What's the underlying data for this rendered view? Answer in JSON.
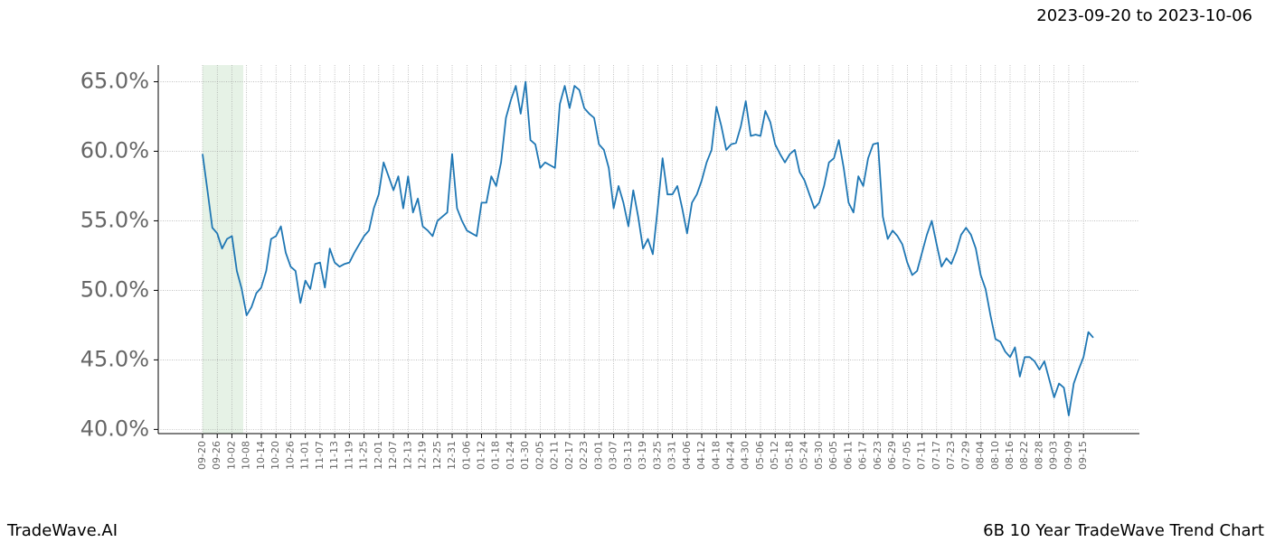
{
  "chart_data": {
    "type": "line",
    "title": "6B 10 Year TradeWave Trend Chart",
    "date_range": "2023-09-20 to 2023-10-06",
    "brand": "TradeWave.AI",
    "categories": [
      "09-20",
      null,
      null,
      "09-26",
      null,
      null,
      "10-02",
      null,
      null,
      "10-08",
      null,
      null,
      "10-14",
      null,
      null,
      "10-20",
      null,
      null,
      "10-26",
      null,
      null,
      "11-01",
      null,
      null,
      "11-07",
      null,
      null,
      "11-13",
      null,
      null,
      "11-19",
      null,
      null,
      "11-25",
      null,
      null,
      "12-01",
      null,
      null,
      "12-07",
      null,
      null,
      "12-13",
      null,
      null,
      "12-19",
      null,
      null,
      "12-25",
      null,
      null,
      "12-31",
      null,
      null,
      "01-06",
      null,
      null,
      "01-12",
      null,
      null,
      "01-18",
      null,
      null,
      "01-24",
      null,
      null,
      "01-30",
      null,
      null,
      "02-05",
      null,
      null,
      "02-11",
      null,
      null,
      "02-17",
      null,
      null,
      "02-23",
      null,
      null,
      "03-01",
      null,
      null,
      "03-07",
      null,
      null,
      "03-13",
      null,
      null,
      "03-19",
      null,
      null,
      "03-25",
      null,
      null,
      "03-31",
      null,
      null,
      "04-06",
      null,
      null,
      "04-12",
      null,
      null,
      "04-18",
      null,
      null,
      "04-24",
      null,
      null,
      "04-30",
      null,
      null,
      "05-06",
      null,
      null,
      "05-12",
      null,
      null,
      "05-18",
      null,
      null,
      "05-24",
      null,
      null,
      "05-30",
      null,
      null,
      "06-05",
      null,
      null,
      "06-11",
      null,
      null,
      "06-17",
      null,
      null,
      "06-23",
      null,
      null,
      "06-29",
      null,
      null,
      "07-05",
      null,
      null,
      "07-11",
      null,
      null,
      "07-17",
      null,
      null,
      "07-23",
      null,
      null,
      "07-29",
      null,
      null,
      "08-04",
      null,
      null,
      "08-10",
      null,
      null,
      "08-16",
      null,
      null,
      "08-22",
      null,
      null,
      "08-28",
      null,
      null,
      "09-03",
      null,
      null,
      "09-09",
      null,
      null,
      "09-15",
      null,
      null
    ],
    "series": [
      {
        "color": "#1f77b4",
        "values": [
          59.8,
          57.2,
          54.5,
          54.1,
          53.0,
          53.7,
          53.9,
          51.4,
          50.1,
          48.2,
          48.8,
          49.8,
          50.2,
          51.4,
          53.7,
          53.9,
          54.6,
          52.7,
          51.7,
          51.4,
          49.1,
          50.7,
          50.1,
          51.9,
          52.0,
          50.2,
          53.0,
          52.0,
          51.7,
          51.9,
          52.0,
          52.7,
          53.3,
          53.9,
          54.3,
          55.9,
          56.9,
          59.2,
          58.2,
          57.2,
          58.2,
          55.9,
          58.2,
          55.6,
          56.6,
          54.6,
          54.3,
          53.9,
          55.0,
          55.3,
          55.6,
          59.8,
          55.9,
          55.0,
          54.3,
          54.1,
          53.9,
          56.3,
          56.3,
          58.2,
          57.5,
          59.2,
          62.4,
          63.7,
          64.7,
          62.7,
          65.0,
          60.8,
          60.5,
          58.8,
          59.2,
          59.0,
          58.8,
          63.4,
          64.7,
          63.1,
          64.7,
          64.4,
          63.1,
          62.7,
          62.4,
          60.5,
          60.1,
          58.8,
          55.9,
          57.5,
          56.3,
          54.6,
          57.2,
          55.3,
          53.0,
          53.7,
          52.6,
          55.9,
          59.5,
          56.9,
          56.9,
          57.5,
          55.9,
          54.1,
          56.3,
          56.9,
          57.9,
          59.2,
          60.1,
          63.2,
          61.8,
          60.1,
          60.5,
          60.6,
          61.8,
          63.6,
          61.1,
          61.2,
          61.1,
          62.9,
          62.1,
          60.5,
          59.8,
          59.2,
          59.8,
          60.1,
          58.5,
          57.9,
          56.9,
          55.9,
          56.3,
          57.5,
          59.2,
          59.5,
          60.8,
          58.8,
          56.3,
          55.6,
          58.2,
          57.5,
          59.5,
          60.5,
          60.6,
          55.3,
          53.7,
          54.3,
          53.9,
          53.3,
          52.0,
          51.1,
          51.4,
          52.7,
          54.0,
          55.0,
          53.3,
          51.7,
          52.3,
          51.9,
          52.8,
          54.0,
          54.5,
          54.0,
          53.0,
          51.1,
          50.1,
          48.2,
          46.5,
          46.3,
          45.6,
          45.2,
          45.9,
          43.8,
          45.2,
          45.2,
          44.9,
          44.3,
          44.9,
          43.6,
          42.3,
          43.3,
          43.0,
          41.0,
          43.3,
          44.3,
          45.2,
          47.0,
          46.6
        ]
      }
    ],
    "ylim": [
      39.7,
      66.2
    ],
    "yticks": [
      {
        "value": 40,
        "label": "40.0%"
      },
      {
        "value": 45,
        "label": "45.0%"
      },
      {
        "value": 50,
        "label": "50.0%"
      },
      {
        "value": 55,
        "label": "55.0%"
      },
      {
        "value": 60,
        "label": "60.0%"
      },
      {
        "value": 65,
        "label": "65.0%"
      }
    ],
    "grid": true
  }
}
